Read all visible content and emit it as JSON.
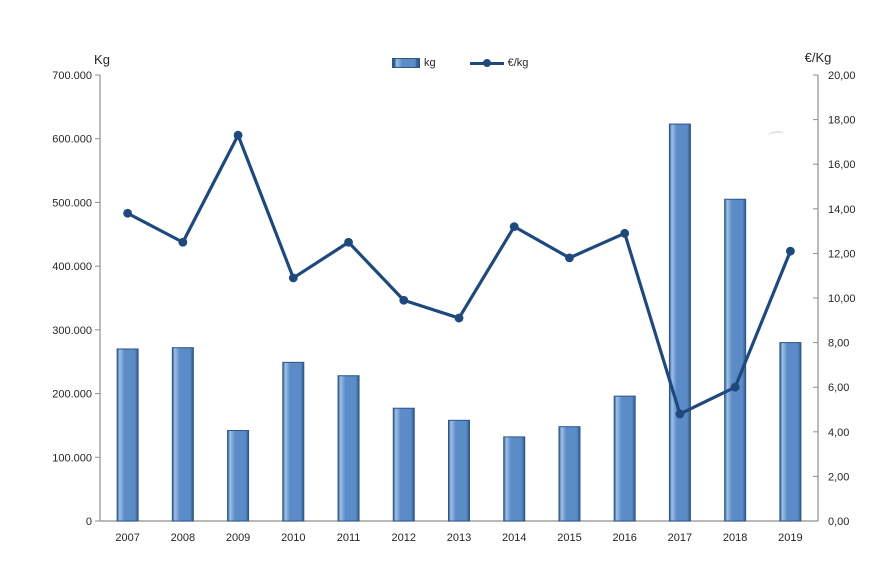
{
  "chart_data": {
    "type": "bar+line combo",
    "categories": [
      "2007",
      "2008",
      "2009",
      "2010",
      "2011",
      "2012",
      "2013",
      "2014",
      "2015",
      "2016",
      "2017",
      "2018",
      "2019"
    ],
    "series": [
      {
        "name": "kg",
        "type": "bar",
        "axis": "left",
        "values": [
          270000,
          272000,
          142000,
          249000,
          228000,
          177000,
          158000,
          132000,
          148000,
          196000,
          623000,
          505000,
          280000
        ]
      },
      {
        "name": "€/kg",
        "type": "line",
        "axis": "right",
        "values": [
          13.8,
          12.5,
          17.3,
          10.9,
          12.5,
          9.9,
          9.1,
          13.2,
          11.8,
          12.9,
          4.8,
          6.0,
          12.1
        ]
      }
    ],
    "left_axis": {
      "title": "Kg",
      "min": 0,
      "max": 700000,
      "tick_labels": [
        "0",
        "100.000",
        "200.000",
        "300.000",
        "400.000",
        "500.000",
        "600.000",
        "700.000"
      ]
    },
    "right_axis": {
      "title": "€/Kg",
      "min": 0,
      "max": 20,
      "tick_labels": [
        "0,00",
        "2,00",
        "4,00",
        "6,00",
        "8,00",
        "10,00",
        "12,00",
        "14,00",
        "16,00",
        "18,00",
        "20,00"
      ]
    },
    "legend": {
      "position": "top-center",
      "items": [
        {
          "label": "kg",
          "swatch": "bar"
        },
        {
          "label": "€/kg",
          "swatch": "line-with-marker"
        }
      ]
    },
    "grid": false
  },
  "colors": {
    "bar_fill": "#5b8cc8",
    "bar_highlight": "#9fc0e8",
    "bar_edge": "#2d5686",
    "line": "#1f497d",
    "axis": "#8f8f8f",
    "text": "#262626"
  }
}
